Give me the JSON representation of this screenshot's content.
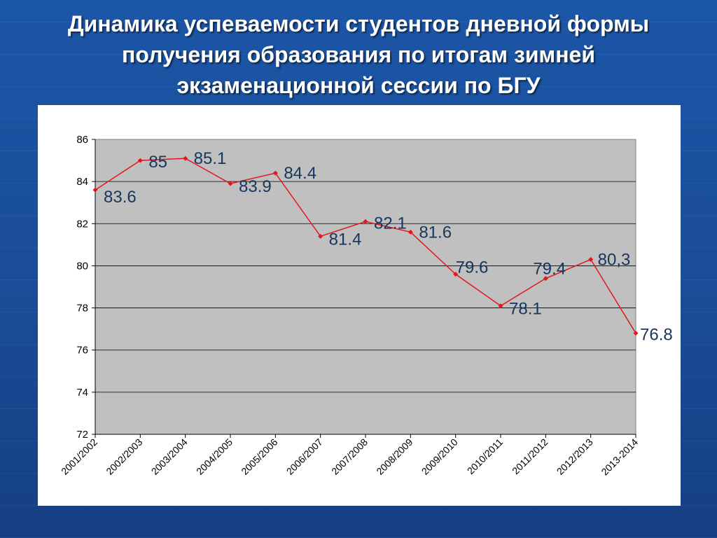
{
  "slide": {
    "title": "Динамика успеваемости студентов дневной формы получения образования по итогам зимней экзаменационной сессии по БГУ"
  },
  "colors": {
    "background": "#1a4f9c",
    "plot_area": "#c0c0c0",
    "line": "#e3171b",
    "data_label": "#17365d"
  },
  "chart_data": {
    "type": "line",
    "title": "",
    "xlabel": "",
    "ylabel": "",
    "categories": [
      "2001/2002",
      "2002/2003",
      "2003/2004",
      "2004/2005",
      "2005/2006",
      "2006/2007",
      "2007/2008",
      "2008/2009",
      "2009/2010",
      "2010/2011",
      "2011/2012",
      "2012/2013",
      "2013-2014"
    ],
    "series": [
      {
        "values": [
          83.6,
          85,
          85.1,
          83.9,
          84.4,
          81.4,
          82.1,
          81.6,
          79.6,
          78.1,
          79.4,
          80.3,
          76.8
        ],
        "labels": [
          "83.6",
          "85",
          "85.1",
          "83.9",
          "84.4",
          "81.4",
          "82.1",
          "81.6",
          "79.6",
          "78.1",
          "79.4",
          "80,3",
          "76.8"
        ]
      }
    ],
    "ylim": [
      72,
      86
    ],
    "yticks": [
      "72",
      "74",
      "76",
      "78",
      "80",
      "82",
      "84",
      "86"
    ],
    "grid": true,
    "legend": "none"
  }
}
